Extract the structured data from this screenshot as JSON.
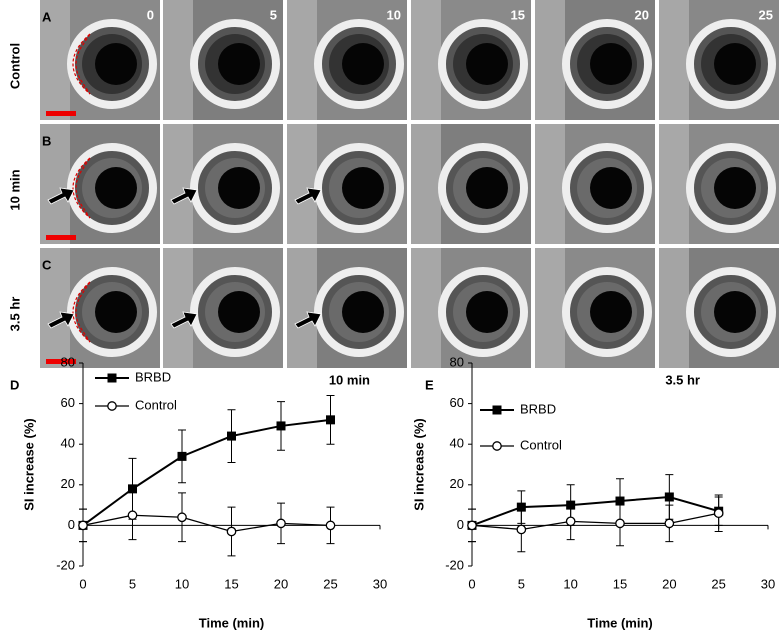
{
  "image_grid": {
    "panels": [
      "A",
      "B",
      "C"
    ],
    "row_labels": [
      "Control",
      "10 min",
      "3.5 hr"
    ],
    "time_labels": [
      0,
      5,
      10,
      15,
      20,
      25
    ]
  },
  "chart_data": [
    {
      "panel": "D",
      "type": "line",
      "title": "10 min",
      "xlabel": "Time (min)",
      "ylabel": "SI increase (%)",
      "x": [
        0,
        5,
        10,
        15,
        20,
        25
      ],
      "series": [
        {
          "name": "BRBD",
          "color": "#000000",
          "marker": "square",
          "values": [
            0,
            18,
            34,
            44,
            49,
            52
          ],
          "errors": [
            8,
            15,
            13,
            13,
            12,
            12
          ]
        },
        {
          "name": "Control",
          "color": "#000000",
          "marker": "circle",
          "values": [
            0,
            5,
            4,
            -3,
            1,
            0
          ],
          "errors": [
            8,
            12,
            12,
            12,
            10,
            9
          ]
        }
      ],
      "xlim": [
        0,
        30
      ],
      "xticks": [
        0,
        5,
        10,
        15,
        20,
        25,
        30
      ],
      "ylim": [
        -20,
        80
      ],
      "yticks": [
        -20,
        0,
        20,
        40,
        60,
        80
      ]
    },
    {
      "panel": "E",
      "type": "line",
      "title": "3.5 hr",
      "xlabel": "Time (min)",
      "ylabel": "SI increase (%)",
      "x": [
        0,
        5,
        10,
        15,
        20,
        25
      ],
      "series": [
        {
          "name": "BRBD",
          "color": "#000000",
          "marker": "square",
          "values": [
            0,
            9,
            10,
            12,
            14,
            7
          ],
          "errors": [
            8,
            8,
            10,
            11,
            11,
            7
          ]
        },
        {
          "name": "Control",
          "color": "#000000",
          "marker": "circle",
          "values": [
            0,
            -2,
            2,
            1,
            1,
            6
          ],
          "errors": [
            8,
            11,
            9,
            11,
            9,
            9
          ]
        }
      ],
      "xlim": [
        0,
        30
      ],
      "xticks": [
        0,
        5,
        10,
        15,
        20,
        25,
        30
      ],
      "ylim": [
        -20,
        80
      ],
      "yticks": [
        -20,
        0,
        20,
        40,
        60,
        80
      ]
    }
  ]
}
